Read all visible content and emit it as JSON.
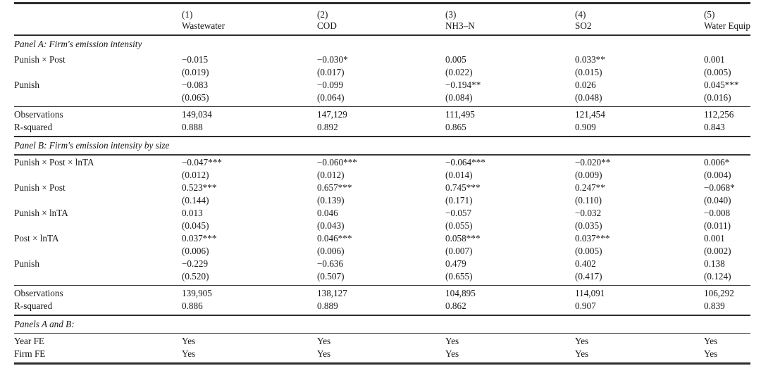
{
  "table": {
    "header": {
      "columns": [
        {
          "number": "(1)",
          "label": "Wastewater"
        },
        {
          "number": "(2)",
          "label": "COD"
        },
        {
          "number": "(3)",
          "label": "NH3–N"
        },
        {
          "number": "(4)",
          "label": "SO2"
        },
        {
          "number": "(5)",
          "label": "Water Equip"
        }
      ]
    },
    "panel_a": {
      "heading": "Panel A: Firm's emission intensity",
      "coef_rows": [
        {
          "label": "Punish × Post",
          "values": [
            "−0.015",
            "−0.030*",
            "0.005",
            "0.033**",
            "0.001"
          ]
        },
        {
          "label": "",
          "values": [
            "(0.019)",
            "(0.017)",
            "(0.022)",
            "(0.015)",
            "(0.005)"
          ]
        },
        {
          "label": "Punish",
          "values": [
            "−0.083",
            "−0.099",
            "−0.194**",
            "0.026",
            "0.045***"
          ]
        },
        {
          "label": "",
          "values": [
            "(0.065)",
            "(0.064)",
            "(0.084)",
            "(0.048)",
            "(0.016)"
          ]
        }
      ],
      "stat_rows": [
        {
          "label": "Observations",
          "values": [
            "149,034",
            "147,129",
            "111,495",
            "121,454",
            "112,256"
          ]
        },
        {
          "label": "R-squared",
          "values": [
            "0.888",
            "0.892",
            "0.865",
            "0.909",
            "0.843"
          ]
        }
      ]
    },
    "panel_b": {
      "heading": "Panel B: Firm's emission intensity by size",
      "coef_rows": [
        {
          "label": "Punish × Post × lnTA",
          "values": [
            "−0.047***",
            "−0.060***",
            "−0.064***",
            "−0.020**",
            "0.006*"
          ]
        },
        {
          "label": "",
          "values": [
            "(0.012)",
            "(0.012)",
            "(0.014)",
            "(0.009)",
            "(0.004)"
          ]
        },
        {
          "label": "Punish × Post",
          "values": [
            "0.523***",
            "0.657***",
            "0.745***",
            "0.247**",
            "−0.068*"
          ]
        },
        {
          "label": "",
          "values": [
            "(0.144)",
            "(0.139)",
            "(0.171)",
            "(0.110)",
            "(0.040)"
          ]
        },
        {
          "label": "Punish × lnTA",
          "values": [
            "0.013",
            "0.046",
            "−0.057",
            "−0.032",
            "−0.008"
          ]
        },
        {
          "label": "",
          "values": [
            "(0.045)",
            "(0.043)",
            "(0.055)",
            "(0.035)",
            "(0.011)"
          ]
        },
        {
          "label": "Post × lnTA",
          "values": [
            "0.037***",
            "0.046***",
            "0.058***",
            "0.037***",
            "0.001"
          ]
        },
        {
          "label": "",
          "values": [
            "(0.006)",
            "(0.006)",
            "(0.007)",
            "(0.005)",
            "(0.002)"
          ]
        },
        {
          "label": "Punish",
          "values": [
            "−0.229",
            "−0.636",
            "0.479",
            "0.402",
            "0.138"
          ]
        },
        {
          "label": "",
          "values": [
            "(0.520)",
            "(0.507)",
            "(0.655)",
            "(0.417)",
            "(0.124)"
          ]
        }
      ],
      "stat_rows": [
        {
          "label": "Observations",
          "values": [
            "139,905",
            "138,127",
            "104,895",
            "114,091",
            "106,292"
          ]
        },
        {
          "label": "R-squared",
          "values": [
            "0.886",
            "0.889",
            "0.862",
            "0.907",
            "0.839"
          ]
        }
      ]
    },
    "panels_ab": {
      "heading": "Panels A and B:",
      "fe_rows": [
        {
          "label": "Year FE",
          "values": [
            "Yes",
            "Yes",
            "Yes",
            "Yes",
            "Yes"
          ]
        },
        {
          "label": "Firm FE",
          "values": [
            "Yes",
            "Yes",
            "Yes",
            "Yes",
            "Yes"
          ]
        }
      ]
    }
  }
}
